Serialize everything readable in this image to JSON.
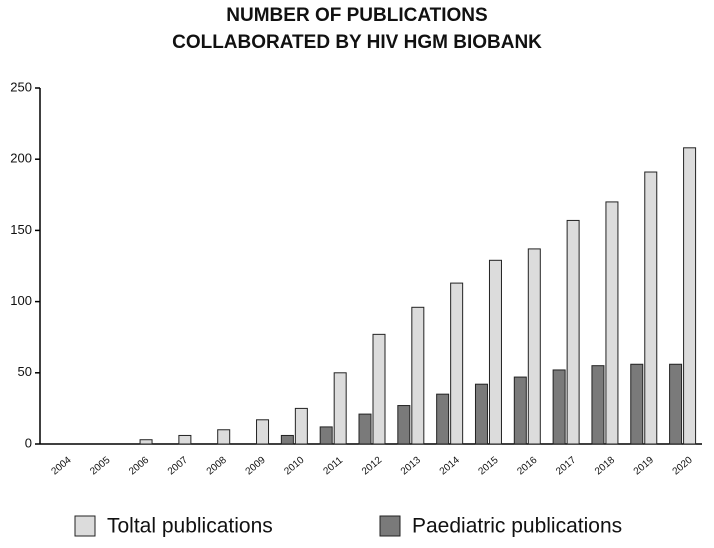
{
  "chart_data": {
    "type": "bar",
    "title": "NUMBER OF PUBLICATIONS",
    "subtitle": "COLLABORATED BY HIV HGM BIOBANK",
    "categories": [
      "2004",
      "2005",
      "2006",
      "2007",
      "2008",
      "2009",
      "2010",
      "2011",
      "2012",
      "2013",
      "2014",
      "2015",
      "2016",
      "2017",
      "2018",
      "2019",
      "2020"
    ],
    "series": [
      {
        "name": "Toltal publications",
        "color": "#dcdcdc",
        "values": [
          0,
          0,
          3,
          6,
          10,
          17,
          25,
          50,
          77,
          96,
          113,
          129,
          137,
          157,
          170,
          191,
          208
        ]
      },
      {
        "name": "Paediatric publications",
        "color": "#7a7a7a",
        "values": [
          0,
          0,
          0,
          0,
          0,
          0,
          6,
          12,
          21,
          27,
          35,
          42,
          47,
          52,
          55,
          56,
          56
        ]
      }
    ],
    "ylim": [
      0,
      250
    ],
    "yticks": [
      0,
      50,
      100,
      150,
      200,
      250
    ],
    "grid": false,
    "legend": "bottom"
  }
}
